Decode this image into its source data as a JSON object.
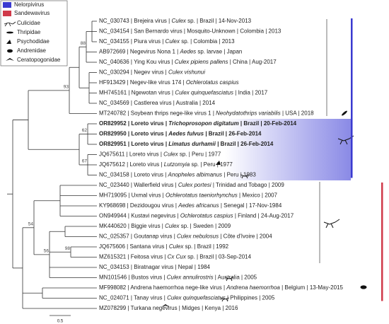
{
  "legend": {
    "genera": [
      {
        "label": "Nelorpivirus",
        "color": "#3a3ad0"
      },
      {
        "label": "Sandewavirus",
        "color": "#d03a4a"
      }
    ],
    "hosts": [
      "Culicidae",
      "Thripidae",
      "Psychodidae",
      "Andrenidae",
      "Ceratopogonidae"
    ]
  },
  "taxa": [
    {
      "segments": [
        "NC_030743 | Brejeira virus | ",
        "Culex",
        " sp. | Brazil | 14-Nov-2013"
      ],
      "bold": false
    },
    {
      "segments": [
        "NC_034154 | San Bernardo virus | Mosquito-Unknown | Colombia | 2013"
      ],
      "bold": false
    },
    {
      "segments": [
        "NC_034155 | Piura virus | ",
        "Culex",
        " sp. | Colombia | 2013"
      ],
      "bold": false
    },
    {
      "segments": [
        "AB972669 | Negevirus Nona 1 | ",
        "Aedes",
        " sp. larvae | Japan"
      ],
      "bold": false
    },
    {
      "segments": [
        "NC_040636 | Ying Kou virus | ",
        "Culex pipiens pallens",
        " | China | Aug-2017"
      ],
      "bold": false
    },
    {
      "segments": [
        "NC_030294 | Negev virus | ",
        "Culex vishunui"
      ],
      "bold": false
    },
    {
      "segments": [
        "HF913429 | Negev-like virus  174 | ",
        "Ochlerotatus caspius"
      ],
      "bold": false
    },
    {
      "segments": [
        "MH745161 | Ngewotan virus | ",
        "Culex quinquefasciatus",
        " | India | 2017"
      ],
      "bold": false
    },
    {
      "segments": [
        "NC_034569 | Castlerea virus | Australia | 2014"
      ],
      "bold": false
    },
    {
      "segments": [
        "MT240782 | Soybean thrips nege-like virus 1 | ",
        "Neohydatothrips variabilis",
        " | USA | 2018"
      ],
      "bold": false
    },
    {
      "segments": [
        "OR829952 | Loreto virus | ",
        "Trichoprosopon digitatum",
        " | Brazil | 20-Feb-2014"
      ],
      "bold": true
    },
    {
      "segments": [
        "OR829950 | Loreto virus | ",
        "Aedes fulvus",
        " | Brazil | 26-Feb-2014"
      ],
      "bold": true
    },
    {
      "segments": [
        "OR829951 | Loreto virus | ",
        "Limatus durhamii",
        " | Brazil | 26-Feb-2014"
      ],
      "bold": true
    },
    {
      "segments": [
        "JQ675611 | Loreto virus | ",
        "Culex",
        " sp. | Peru | 1977"
      ],
      "bold": false
    },
    {
      "segments": [
        "JQ675612 | Loreto virus | ",
        "Lutzomyia",
        " sp. | Peru | 1977"
      ],
      "bold": false
    },
    {
      "segments": [
        "NC_034158 | Loreto virus | ",
        "Anopheles albimanus",
        " | Peru | 1983"
      ],
      "bold": false
    },
    {
      "segments": [
        "NC_023440 | Wallerfield virus | ",
        "Culex portesi",
        " | Trinidad and Tobago | 2009"
      ],
      "bold": false
    },
    {
      "segments": [
        "MH719095 | Uxmal virus | ",
        "Ochlerotatus taeniorhynchus",
        " | Mexico | 2007"
      ],
      "bold": false
    },
    {
      "segments": [
        "KY968698 | Dezidougou virus | ",
        "Aedes africanus",
        " | Senegal | 17-Nov-1984"
      ],
      "bold": false
    },
    {
      "segments": [
        "ON949944 | Kustavi negevirus | ",
        "Ochlerotatus caspius",
        " | Finland | 24-Aug-2017"
      ],
      "bold": false
    },
    {
      "segments": [
        "MK440620 | Biggie virus | ",
        "Culex",
        " sp. | Sweden | 2009"
      ],
      "bold": false
    },
    {
      "segments": [
        "NC_025357 | Goutanap virus | ",
        "Culex nebulosus",
        " | Côte d'Ivoire | 2004"
      ],
      "bold": false
    },
    {
      "segments": [
        "JQ675606 | Santana virus | ",
        "Culex",
        " sp. | Brazil | 1992"
      ],
      "bold": false
    },
    {
      "segments": [
        "MZ615321 | Feitosa virus | ",
        "Cx Cux",
        " sp. | Brazil | 03-Sep-2014"
      ],
      "bold": false
    },
    {
      "segments": [
        "NC_034153 | Biratnagar virus | Nepal | 1984"
      ],
      "bold": false
    },
    {
      "segments": [
        "MN101546 | Bustos virus | ",
        "Culex annulirostris",
        " | Australia | 2005"
      ],
      "bold": false
    },
    {
      "segments": [
        "MF998082 | Andrena haemorrhoa nege-like virus | ",
        "Andrena haemorrhoa",
        " | Belgium | 13-May-2015"
      ],
      "bold": false
    },
    {
      "segments": [
        "NC_024071 | Tanay virus | ",
        "Culex quinquefasciatus",
        " | Philippines | 2005"
      ],
      "bold": false
    },
    {
      "segments": [
        "MZ078299 | Turkana negevirus | Midges | Kenya | 2016"
      ],
      "bold": false
    }
  ],
  "bootstrap": [
    88,
    93,
    62,
    67,
    54,
    56,
    98
  ],
  "scale_bar": "0.5"
}
